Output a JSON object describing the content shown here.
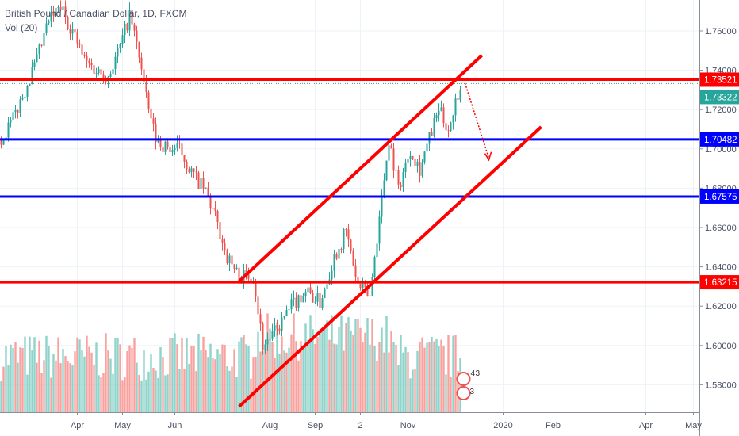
{
  "header": {
    "symbol_title": "British Pound / Canadian Dollar, 1D, FXCM",
    "indicator": "Vol (20)"
  },
  "colors": {
    "up": "#26a69a",
    "down": "#ef5350",
    "level_red": "#ff0000",
    "level_blue": "#0000ff",
    "current_price_bg": "#26a69a",
    "grid": "#eef3f7"
  },
  "chart_data": {
    "type": "candlestick",
    "symbol": "GBPCAD",
    "timeframe": "1D",
    "price_axis": {
      "ticks": [
        "1.76000",
        "1.74000",
        "1.72000",
        "1.70000",
        "1.68000",
        "1.66000",
        "1.64000",
        "1.62000",
        "1.60000",
        "1.58000"
      ],
      "tick_values": [
        1.76,
        1.74,
        1.72,
        1.7,
        1.68,
        1.66,
        1.64,
        1.62,
        1.6,
        1.58
      ],
      "range": [
        1.5655,
        1.7815
      ]
    },
    "time_axis": {
      "labels": [
        "Apr",
        "May",
        "Jun",
        "Aug",
        "Sep",
        "2",
        "Nov",
        "2020",
        "Feb",
        "Apr",
        "May"
      ],
      "label_bars": [
        32,
        51,
        73,
        113,
        132,
        151,
        171,
        211,
        232,
        271,
        291
      ],
      "bars_visible": 294
    },
    "price_path": [
      [
        0,
        1.705
      ],
      [
        5,
        1.715
      ],
      [
        10,
        1.73
      ],
      [
        15,
        1.745
      ],
      [
        20,
        1.765
      ],
      [
        25,
        1.772
      ],
      [
        30,
        1.76
      ],
      [
        35,
        1.745
      ],
      [
        40,
        1.74
      ],
      [
        45,
        1.737
      ],
      [
        50,
        1.752
      ],
      [
        54,
        1.768
      ],
      [
        58,
        1.748
      ],
      [
        61,
        1.725
      ],
      [
        65,
        1.705
      ],
      [
        70,
        1.7
      ],
      [
        75,
        1.7
      ],
      [
        80,
        1.688
      ],
      [
        86,
        1.678
      ],
      [
        90,
        1.665
      ],
      [
        95,
        1.645
      ],
      [
        100,
        1.635
      ],
      [
        106,
        1.636
      ],
      [
        110,
        1.6
      ],
      [
        116,
        1.608
      ],
      [
        122,
        1.62
      ],
      [
        128,
        1.628
      ],
      [
        134,
        1.622
      ],
      [
        140,
        1.645
      ],
      [
        145,
        1.658
      ],
      [
        150,
        1.63
      ],
      [
        155,
        1.625
      ],
      [
        160,
        1.675
      ],
      [
        163,
        1.705
      ],
      [
        167,
        1.68
      ],
      [
        172,
        1.7
      ],
      [
        176,
        1.69
      ],
      [
        180,
        1.705
      ],
      [
        184,
        1.72
      ],
      [
        188,
        1.71
      ],
      [
        193,
        1.733
      ]
    ],
    "levels": [
      {
        "price": 1.73521,
        "label": "1.73521",
        "color": "red"
      },
      {
        "price": 1.70482,
        "label": "1.70482",
        "color": "blue"
      },
      {
        "price": 1.67575,
        "label": "1.67575",
        "color": "blue"
      },
      {
        "price": 1.63215,
        "label": "1.63215",
        "color": "red"
      }
    ],
    "current_price": {
      "price": 1.73322,
      "label": "1.73322"
    },
    "channel": {
      "upper": [
        [
          100,
          1.6326
        ],
        [
          202,
          1.7475
        ]
      ],
      "lower": [
        [
          100,
          1.5689
        ],
        [
          227,
          1.7112
        ]
      ]
    },
    "projection_arrow": [
      [
        195,
        1.7334
      ],
      [
        205,
        1.6952
      ]
    ],
    "events": [
      "4",
      "3",
      "3"
    ]
  }
}
